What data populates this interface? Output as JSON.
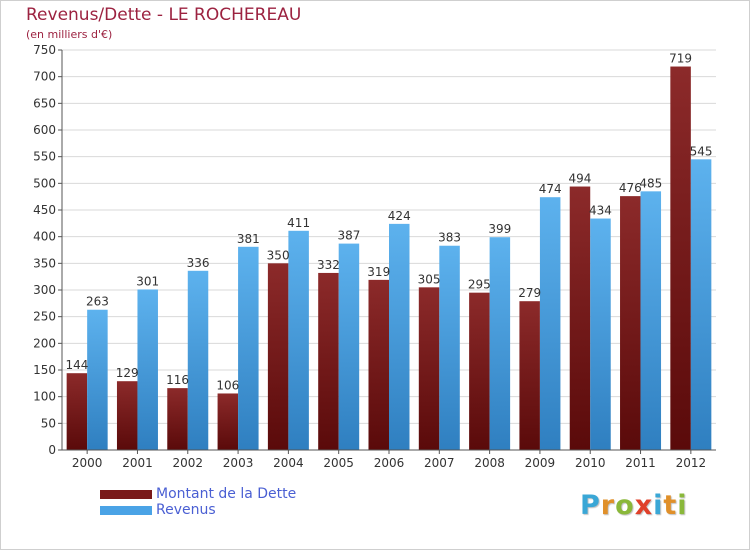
{
  "title": "Revenus/Dette - LE ROCHEREAU",
  "subtitle": "(en milliers d'€)",
  "colors": {
    "dette": "#7a1a1a",
    "dette_light": "#8c2a2a",
    "revenus": "#4aa3e6",
    "revenus_light": "#5db2ee",
    "title": "#9c2240",
    "legend_text": "#4a5fd3"
  },
  "logo": {
    "letters": [
      "P",
      "r",
      "o",
      "x",
      "i",
      "t",
      "i"
    ],
    "colors": [
      "#3aa7d6",
      "#e0902a",
      "#8ab83a",
      "#e0402a",
      "#3aa7d6",
      "#e0902a",
      "#8ab83a"
    ]
  },
  "chart_data": {
    "type": "bar",
    "categories": [
      "2000",
      "2001",
      "2002",
      "2003",
      "2004",
      "2005",
      "2006",
      "2007",
      "2008",
      "2009",
      "2010",
      "2011",
      "2012"
    ],
    "series": [
      {
        "name": "Montant de la Dette",
        "values": [
          144,
          129,
          116,
          106,
          350,
          332,
          319,
          305,
          295,
          279,
          494,
          476,
          719
        ]
      },
      {
        "name": "Revenus",
        "values": [
          263,
          301,
          336,
          381,
          411,
          387,
          424,
          383,
          399,
          474,
          434,
          485,
          545
        ]
      }
    ],
    "title": "Revenus/Dette - LE ROCHEREAU",
    "subtitle": "(en milliers d'€)",
    "ylim": [
      0,
      750
    ],
    "yticks": [
      0,
      50,
      100,
      150,
      200,
      250,
      300,
      350,
      400,
      450,
      500,
      550,
      600,
      650,
      700,
      750
    ],
    "grid": true,
    "legend_position": "bottom-left"
  }
}
